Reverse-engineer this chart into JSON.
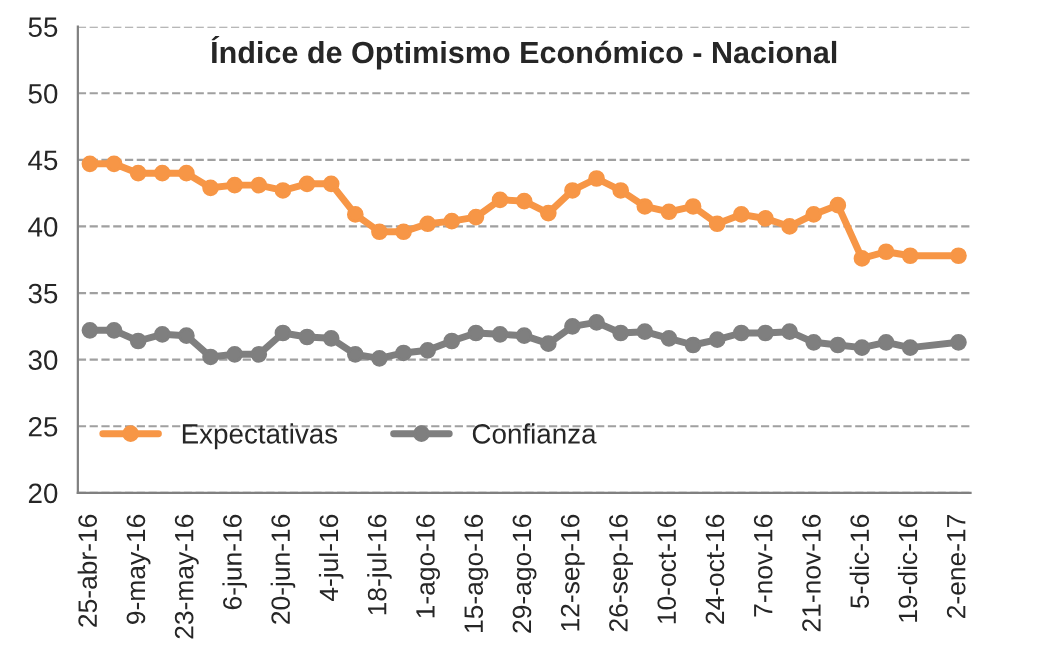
{
  "chart_data": {
    "type": "line",
    "title": "Índice de Optimismo Económico - Nacional",
    "categories": [
      "25-abr-16",
      null,
      "9-may-16",
      null,
      "23-may-16",
      null,
      "6-jun-16",
      null,
      "20-jun-16",
      null,
      "4-jul-16",
      null,
      "18-jul-16",
      null,
      "1-ago-16",
      null,
      "15-ago-16",
      null,
      "29-ago-16",
      null,
      "12-sep-16",
      null,
      "26-sep-16",
      null,
      "10-oct-16",
      null,
      "24-oct-16",
      null,
      "7-nov-16",
      null,
      "21-nov-16",
      null,
      "5-dic-16",
      null,
      "19-dic-16",
      null,
      "2-ene-17"
    ],
    "series": [
      {
        "name": "Expectativas",
        "color": "#f79646",
        "values": [
          44.7,
          44.7,
          44.0,
          44.0,
          44.0,
          42.9,
          43.1,
          43.1,
          42.7,
          43.2,
          43.2,
          40.9,
          39.6,
          39.6,
          40.2,
          40.4,
          40.7,
          42.0,
          41.9,
          41.0,
          42.7,
          43.6,
          42.7,
          41.5,
          41.1,
          41.5,
          40.2,
          40.9,
          40.6,
          40.0,
          40.9,
          41.6,
          37.6,
          38.1,
          37.8,
          null,
          37.8
        ]
      },
      {
        "name": "Confianza",
        "color": "#7f7f7f",
        "values": [
          32.2,
          32.2,
          31.4,
          31.9,
          31.8,
          30.2,
          30.4,
          30.4,
          32.0,
          31.7,
          31.6,
          30.4,
          30.1,
          30.5,
          30.7,
          31.4,
          32.0,
          31.9,
          31.8,
          31.2,
          32.5,
          32.8,
          32.0,
          32.1,
          31.6,
          31.1,
          31.5,
          32.0,
          32.0,
          32.1,
          31.3,
          31.1,
          30.9,
          31.3,
          30.9,
          null,
          31.3
        ]
      }
    ],
    "ylim": [
      20,
      55
    ],
    "yticks": [
      20,
      25,
      30,
      35,
      40,
      45,
      50,
      55
    ],
    "grid": "y",
    "legend": "bottom left",
    "marker": "circle",
    "line_style": "solid"
  }
}
